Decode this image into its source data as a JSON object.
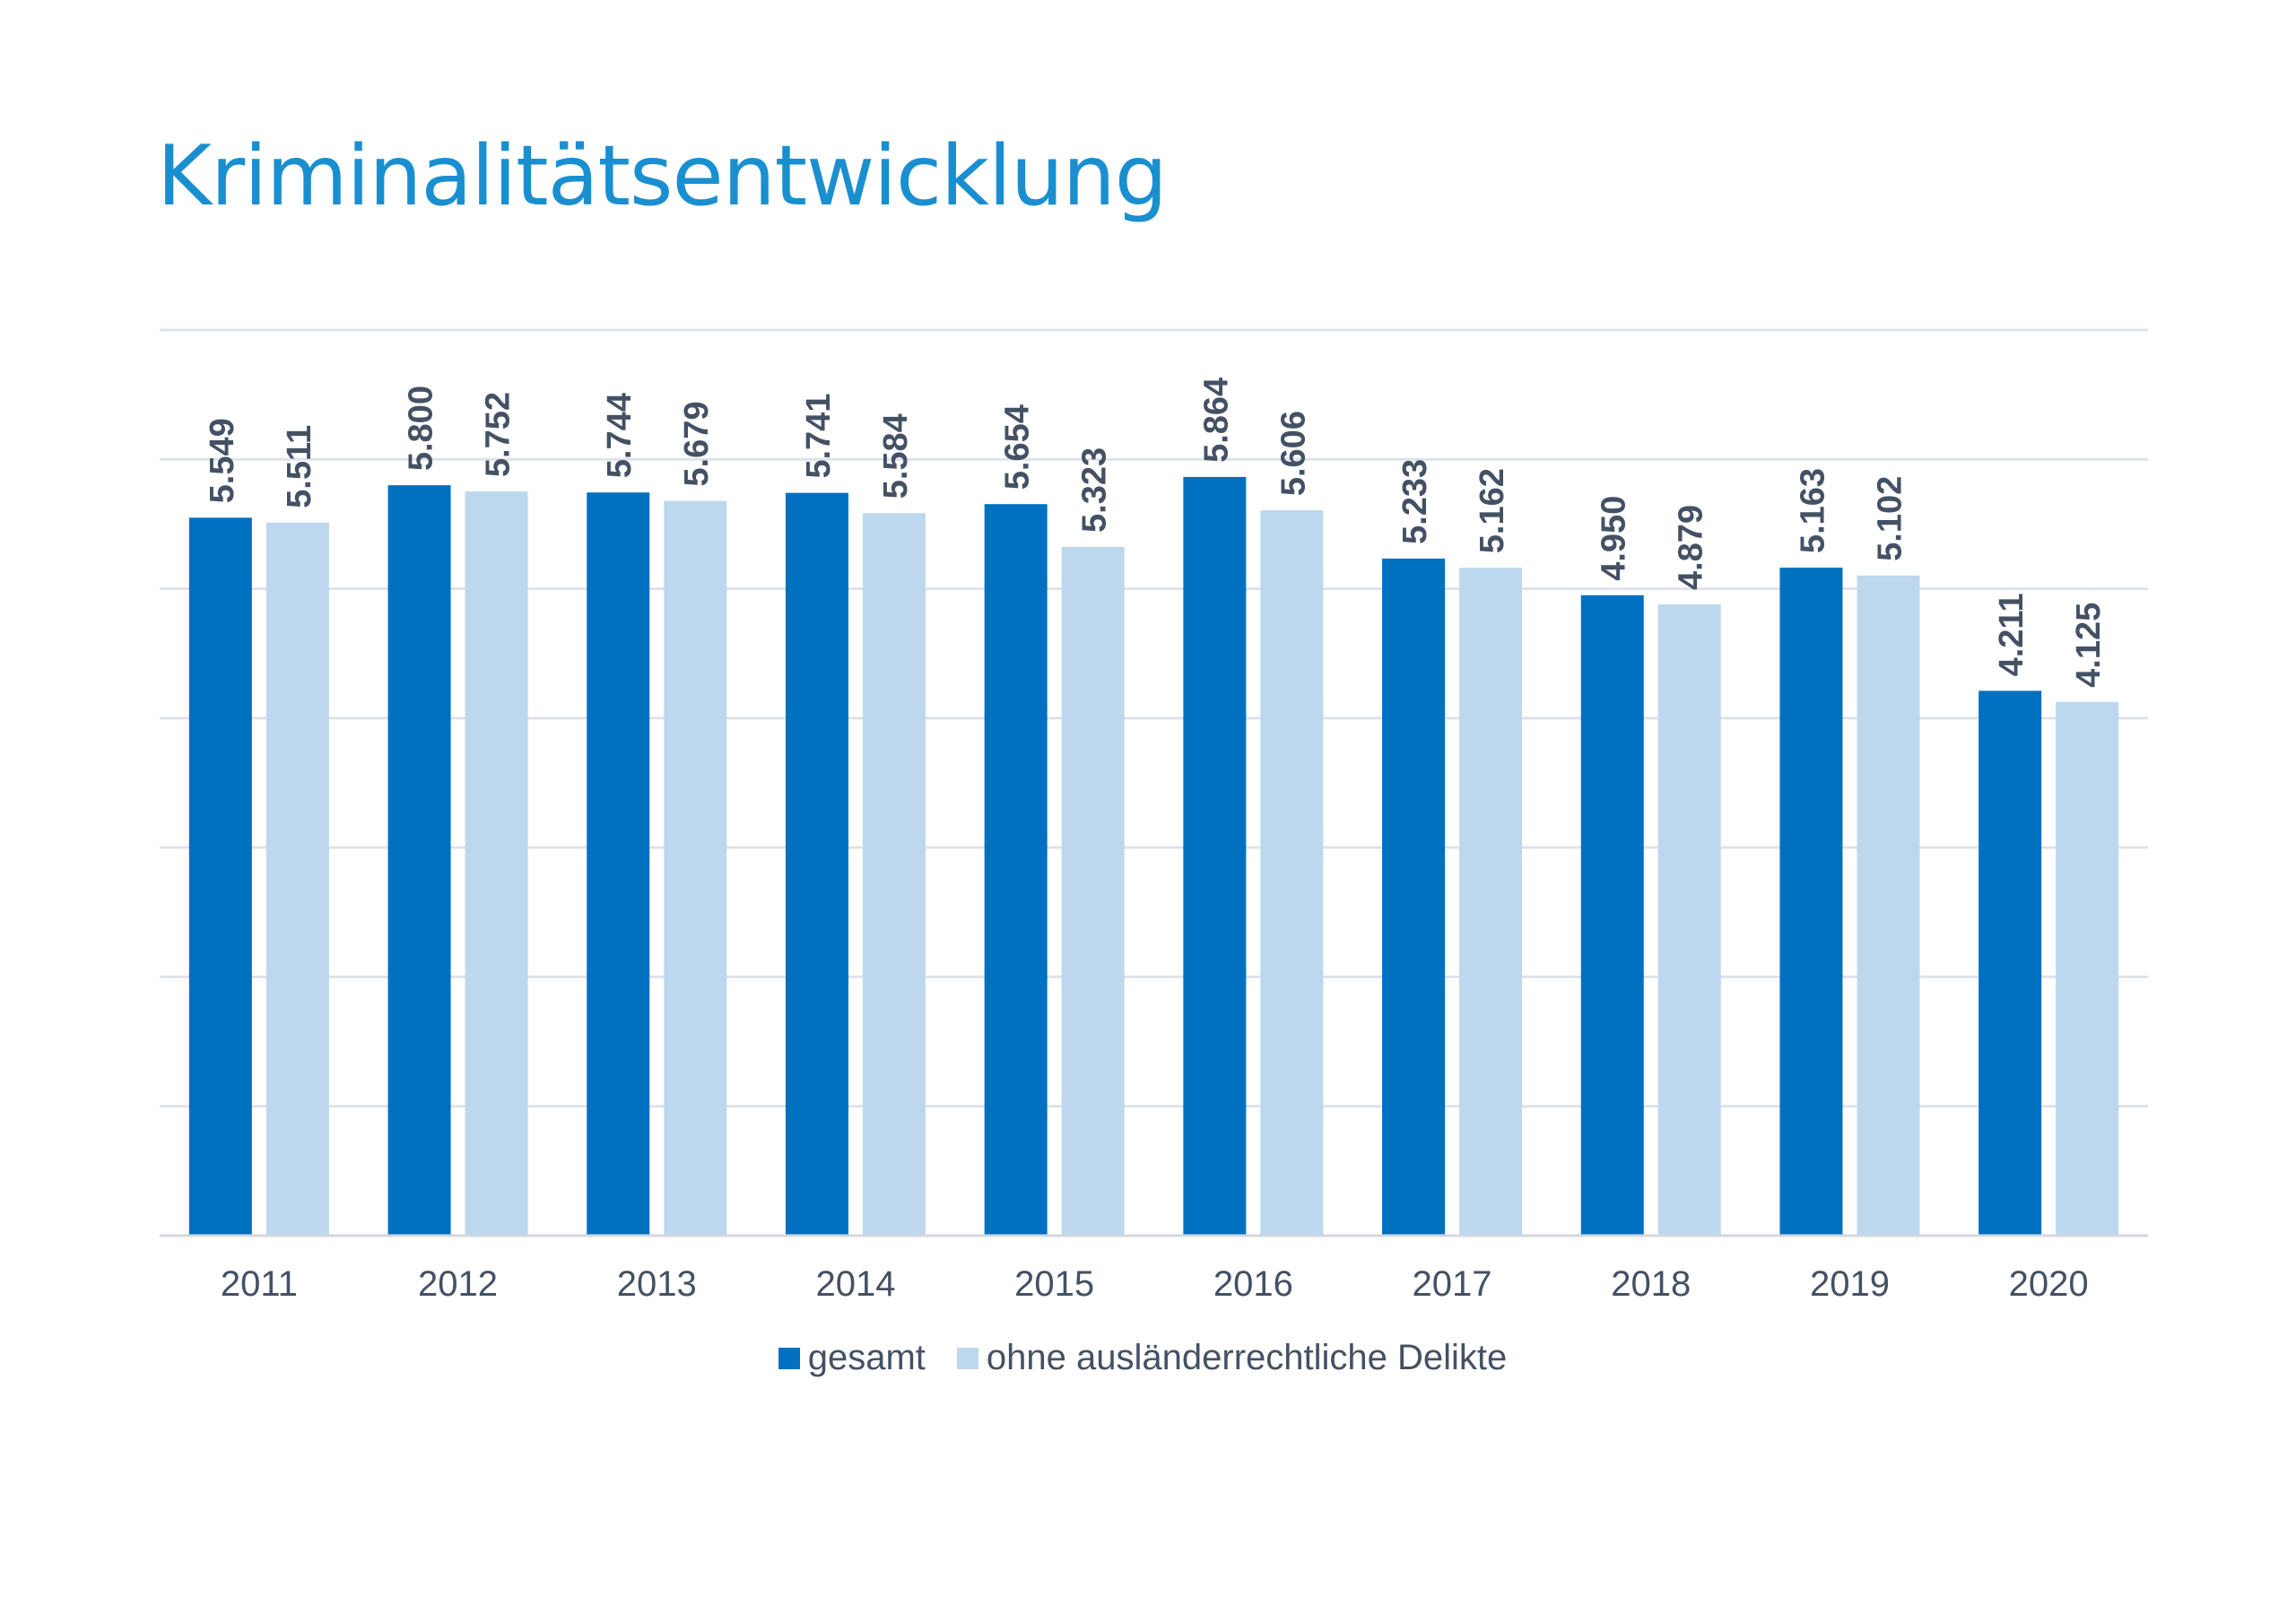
{
  "title": "Kriminalitätsentwicklung",
  "colors": {
    "title": "#1a8fd0",
    "grid": "#dfe2ea",
    "label": "#445164"
  },
  "chart_data": {
    "type": "bar",
    "ylim": [
      0,
      7000
    ],
    "grid": true,
    "legend_position": "bottom",
    "categories": [
      "2011",
      "2012",
      "2013",
      "2014",
      "2015",
      "2016",
      "2017",
      "2018",
      "2019",
      "2020"
    ],
    "series": [
      {
        "name": "gesamt",
        "color": "#0070c0",
        "values": [
          5549,
          5800,
          5744,
          5741,
          5654,
          5864,
          5233,
          4950,
          5163,
          4211
        ],
        "labels": [
          "5.549",
          "5.800",
          "5.744",
          "5.741",
          "5.654",
          "5.864",
          "5.233",
          "4.950",
          "5.163",
          "4.211"
        ]
      },
      {
        "name": "ohne ausländerrechtliche Delikte",
        "color": "#bdd7ee",
        "values": [
          5511,
          5752,
          5679,
          5584,
          5323,
          5606,
          5162,
          4879,
          5102,
          4125
        ],
        "labels": [
          "5.511",
          "5.752",
          "5.679",
          "5.584",
          "5.323",
          "5.606",
          "5.162",
          "4.879",
          "5.102",
          "4.125"
        ]
      }
    ]
  }
}
